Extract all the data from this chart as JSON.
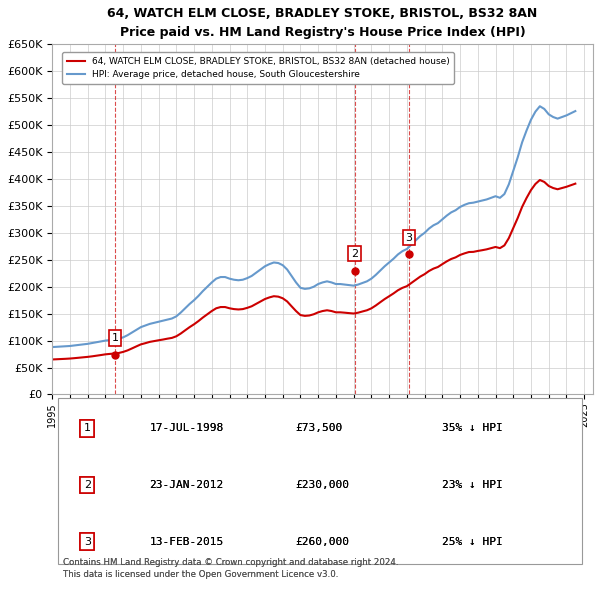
{
  "title": "64, WATCH ELM CLOSE, BRADLEY STOKE, BRISTOL, BS32 8AN",
  "subtitle": "Price paid vs. HM Land Registry's House Price Index (HPI)",
  "ylabel": "",
  "ylim": [
    0,
    650000
  ],
  "yticks": [
    0,
    50000,
    100000,
    150000,
    200000,
    250000,
    300000,
    350000,
    400000,
    450000,
    500000,
    550000,
    600000,
    650000
  ],
  "xlim_start": 1995.0,
  "xlim_end": 2025.5,
  "sale_color": "#cc0000",
  "hpi_color": "#6699cc",
  "sale_dates": [
    1998.54,
    2012.06,
    2015.12
  ],
  "sale_prices": [
    73500,
    230000,
    260000
  ],
  "sale_labels": [
    "1",
    "2",
    "3"
  ],
  "vline_dates": [
    1998.54,
    2012.06,
    2015.12
  ],
  "legend_sale": "64, WATCH ELM CLOSE, BRADLEY STOKE, BRISTOL, BS32 8AN (detached house)",
  "legend_hpi": "HPI: Average price, detached house, South Gloucestershire",
  "table_data": [
    [
      "1",
      "17-JUL-1998",
      "£73,500",
      "35% ↓ HPI"
    ],
    [
      "2",
      "23-JAN-2012",
      "£230,000",
      "23% ↓ HPI"
    ],
    [
      "3",
      "13-FEB-2015",
      "£260,000",
      "25% ↓ HPI"
    ]
  ],
  "footnote": "Contains HM Land Registry data © Crown copyright and database right 2024.\nThis data is licensed under the Open Government Licence v3.0.",
  "background_color": "#ffffff",
  "grid_color": "#cccccc",
  "hpi_data_x": [
    1995.0,
    1995.25,
    1995.5,
    1995.75,
    1996.0,
    1996.25,
    1996.5,
    1996.75,
    1997.0,
    1997.25,
    1997.5,
    1997.75,
    1998.0,
    1998.25,
    1998.5,
    1998.75,
    1999.0,
    1999.25,
    1999.5,
    1999.75,
    2000.0,
    2000.25,
    2000.5,
    2000.75,
    2001.0,
    2001.25,
    2001.5,
    2001.75,
    2002.0,
    2002.25,
    2002.5,
    2002.75,
    2003.0,
    2003.25,
    2003.5,
    2003.75,
    2004.0,
    2004.25,
    2004.5,
    2004.75,
    2005.0,
    2005.25,
    2005.5,
    2005.75,
    2006.0,
    2006.25,
    2006.5,
    2006.75,
    2007.0,
    2007.25,
    2007.5,
    2007.75,
    2008.0,
    2008.25,
    2008.5,
    2008.75,
    2009.0,
    2009.25,
    2009.5,
    2009.75,
    2010.0,
    2010.25,
    2010.5,
    2010.75,
    2011.0,
    2011.25,
    2011.5,
    2011.75,
    2012.0,
    2012.25,
    2012.5,
    2012.75,
    2013.0,
    2013.25,
    2013.5,
    2013.75,
    2014.0,
    2014.25,
    2014.5,
    2014.75,
    2015.0,
    2015.25,
    2015.5,
    2015.75,
    2016.0,
    2016.25,
    2016.5,
    2016.75,
    2017.0,
    2017.25,
    2017.5,
    2017.75,
    2018.0,
    2018.25,
    2018.5,
    2018.75,
    2019.0,
    2019.25,
    2019.5,
    2019.75,
    2020.0,
    2020.25,
    2020.5,
    2020.75,
    2021.0,
    2021.25,
    2021.5,
    2021.75,
    2022.0,
    2022.25,
    2022.5,
    2022.75,
    2023.0,
    2023.25,
    2023.5,
    2023.75,
    2024.0,
    2024.25,
    2024.5
  ],
  "hpi_data_y": [
    88000,
    88500,
    89000,
    89500,
    90000,
    91000,
    92000,
    93000,
    94000,
    95500,
    97000,
    98500,
    100000,
    101000,
    102000,
    103500,
    106000,
    110000,
    115000,
    120000,
    125000,
    128000,
    131000,
    133000,
    135000,
    137000,
    139000,
    141000,
    145000,
    152000,
    160000,
    168000,
    175000,
    183000,
    192000,
    200000,
    208000,
    215000,
    218000,
    218000,
    215000,
    213000,
    212000,
    213000,
    216000,
    220000,
    226000,
    232000,
    238000,
    242000,
    245000,
    244000,
    240000,
    232000,
    220000,
    208000,
    198000,
    196000,
    197000,
    200000,
    205000,
    208000,
    210000,
    208000,
    205000,
    205000,
    204000,
    203000,
    202000,
    204000,
    207000,
    210000,
    215000,
    222000,
    230000,
    238000,
    245000,
    252000,
    260000,
    266000,
    270000,
    278000,
    286000,
    294000,
    300000,
    308000,
    314000,
    318000,
    325000,
    332000,
    338000,
    342000,
    348000,
    352000,
    355000,
    356000,
    358000,
    360000,
    362000,
    365000,
    368000,
    365000,
    372000,
    390000,
    415000,
    440000,
    468000,
    490000,
    510000,
    525000,
    535000,
    530000,
    520000,
    515000,
    512000,
    515000,
    518000,
    522000,
    526000
  ],
  "sale_hpi_x": [
    1995.0,
    1995.25,
    1995.5,
    1995.75,
    1996.0,
    1996.25,
    1996.5,
    1996.75,
    1997.0,
    1997.25,
    1997.5,
    1997.75,
    1998.0,
    1998.25,
    1998.5,
    1998.75,
    1999.0,
    1999.25,
    1999.5,
    1999.75,
    2000.0,
    2000.25,
    2000.5,
    2000.75,
    2001.0,
    2001.25,
    2001.5,
    2001.75,
    2002.0,
    2002.25,
    2002.5,
    2002.75,
    2003.0,
    2003.25,
    2003.5,
    2003.75,
    2004.0,
    2004.25,
    2004.5,
    2004.75,
    2005.0,
    2005.25,
    2005.5,
    2005.75,
    2006.0,
    2006.25,
    2006.5,
    2006.75,
    2007.0,
    2007.25,
    2007.5,
    2007.75,
    2008.0,
    2008.25,
    2008.5,
    2008.75,
    2009.0,
    2009.25,
    2009.5,
    2009.75,
    2010.0,
    2010.25,
    2010.5,
    2010.75,
    2011.0,
    2011.25,
    2011.5,
    2011.75,
    2012.0,
    2012.25,
    2012.5,
    2012.75,
    2013.0,
    2013.25,
    2013.5,
    2013.75,
    2014.0,
    2014.25,
    2014.5,
    2014.75,
    2015.0,
    2015.25,
    2015.5,
    2015.75,
    2016.0,
    2016.25,
    2016.5,
    2016.75,
    2017.0,
    2017.25,
    2017.5,
    2017.75,
    2018.0,
    2018.25,
    2018.5,
    2018.75,
    2019.0,
    2019.25,
    2019.5,
    2019.75,
    2020.0,
    2020.25,
    2020.5,
    2020.75,
    2021.0,
    2021.25,
    2021.5,
    2021.75,
    2022.0,
    2022.25,
    2022.5,
    2022.75,
    2023.0,
    2023.25,
    2023.5,
    2023.75,
    2024.0,
    2024.25,
    2024.5
  ],
  "sale_hpi_y": [
    65000,
    65400,
    65800,
    66200,
    66700,
    67400,
    68200,
    69000,
    69800,
    70800,
    72000,
    73200,
    74500,
    75300,
    76000,
    77000,
    79000,
    81800,
    85500,
    89300,
    93000,
    95200,
    97600,
    99100,
    100600,
    102000,
    103600,
    105000,
    108000,
    113100,
    119100,
    125000,
    130300,
    136300,
    142900,
    148900,
    154900,
    160000,
    162300,
    162300,
    160000,
    158500,
    157800,
    158500,
    160800,
    163700,
    168200,
    172700,
    177200,
    180200,
    182400,
    181600,
    178600,
    172700,
    163700,
    154900,
    147400,
    145900,
    146600,
    148900,
    152500,
    154900,
    156300,
    154900,
    152500,
    152500,
    151800,
    151000,
    150300,
    151800,
    154100,
    156300,
    159900,
    165200,
    171200,
    177100,
    182300,
    187600,
    193500,
    197900,
    201000,
    206900,
    212800,
    218700,
    223300,
    229200,
    233600,
    236600,
    241900,
    247100,
    251500,
    254500,
    259000,
    261900,
    264400,
    264700,
    266400,
    267800,
    269400,
    271600,
    273800,
    271600,
    276700,
    290200,
    308900,
    327500,
    348200,
    364700,
    379400,
    390700,
    398100,
    394500,
    387000,
    383200,
    380900,
    383200,
    385500,
    388400,
    391300
  ]
}
